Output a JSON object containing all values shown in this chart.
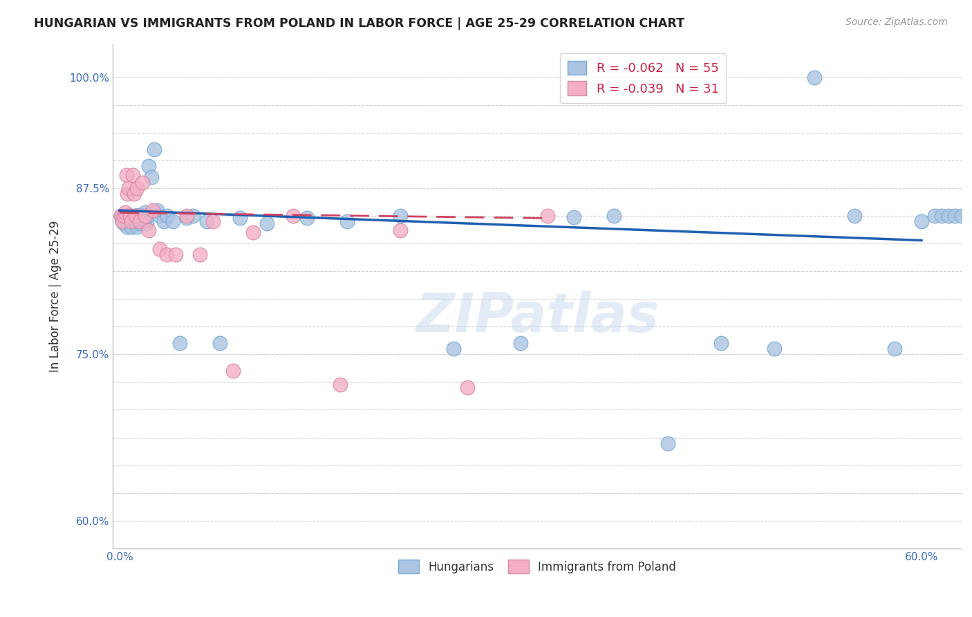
{
  "title": "HUNGARIAN VS IMMIGRANTS FROM POLAND IN LABOR FORCE | AGE 25-29 CORRELATION CHART",
  "source": "Source: ZipAtlas.com",
  "ylabel": "In Labor Force | Age 25-29",
  "xlim": [
    -0.005,
    0.63
  ],
  "ylim": [
    0.575,
    1.03
  ],
  "yticks": [
    0.6,
    0.625,
    0.65,
    0.675,
    0.7,
    0.725,
    0.75,
    0.775,
    0.8,
    0.825,
    0.85,
    0.875,
    0.9,
    0.925,
    0.95,
    0.975,
    1.0
  ],
  "ytick_labels": [
    "60.0%",
    "",
    "",
    "",
    "",
    "",
    "75.0%",
    "",
    "",
    "",
    "",
    "",
    "87.5%",
    "",
    "",
    "",
    "100.0%"
  ],
  "xticks": [
    0.0,
    0.1,
    0.2,
    0.3,
    0.4,
    0.5,
    0.6
  ],
  "xtick_labels": [
    "0.0%",
    "",
    "",
    "",
    "",
    "",
    "60.0%"
  ],
  "blue_color": "#aac4e2",
  "pink_color": "#f4afc4",
  "blue_line_color": "#2060b0",
  "pink_line_color": "#d04060",
  "legend_R1": "-0.062",
  "legend_N1": "55",
  "legend_R2": "-0.039",
  "legend_N2": "31",
  "watermark": "ZIPatlas",
  "blue_points_x": [
    0.001,
    0.002,
    0.003,
    0.004,
    0.005,
    0.006,
    0.007,
    0.008,
    0.009,
    0.01,
    0.011,
    0.012,
    0.013,
    0.014,
    0.015,
    0.016,
    0.017,
    0.018,
    0.019,
    0.02,
    0.021,
    0.022,
    0.024,
    0.026,
    0.028,
    0.03,
    0.033,
    0.036,
    0.04,
    0.045,
    0.05,
    0.055,
    0.065,
    0.075,
    0.09,
    0.11,
    0.14,
    0.17,
    0.21,
    0.25,
    0.3,
    0.34,
    0.37,
    0.41,
    0.45,
    0.49,
    0.52,
    0.55,
    0.58,
    0.6,
    0.61,
    0.615,
    0.62,
    0.625,
    0.63
  ],
  "blue_points_y": [
    0.875,
    0.87,
    0.868,
    0.875,
    0.87,
    0.865,
    0.876,
    0.87,
    0.865,
    0.872,
    0.875,
    0.87,
    0.865,
    0.876,
    0.868,
    0.872,
    0.875,
    0.87,
    0.878,
    0.868,
    0.875,
    0.92,
    0.91,
    0.935,
    0.88,
    0.875,
    0.87,
    0.875,
    0.87,
    0.76,
    0.873,
    0.875,
    0.87,
    0.76,
    0.873,
    0.868,
    0.873,
    0.87,
    0.875,
    0.755,
    0.76,
    0.874,
    0.875,
    0.67,
    0.76,
    0.755,
    1.0,
    0.875,
    0.755,
    0.87,
    0.875,
    0.875,
    0.875,
    0.875,
    0.875
  ],
  "pink_points_x": [
    0.001,
    0.002,
    0.003,
    0.004,
    0.005,
    0.006,
    0.007,
    0.008,
    0.009,
    0.01,
    0.011,
    0.012,
    0.013,
    0.015,
    0.017,
    0.019,
    0.022,
    0.025,
    0.03,
    0.035,
    0.042,
    0.05,
    0.06,
    0.07,
    0.085,
    0.1,
    0.13,
    0.165,
    0.21,
    0.26,
    0.32
  ],
  "pink_points_y": [
    0.875,
    0.87,
    0.875,
    0.878,
    0.912,
    0.895,
    0.9,
    0.875,
    0.87,
    0.912,
    0.895,
    0.875,
    0.9,
    0.87,
    0.905,
    0.875,
    0.862,
    0.88,
    0.845,
    0.84,
    0.84,
    0.875,
    0.84,
    0.87,
    0.735,
    0.86,
    0.875,
    0.723,
    0.862,
    0.72,
    0.875
  ],
  "blue_line_x0": 0.0,
  "blue_line_y0": 0.88,
  "blue_line_x1": 0.6,
  "blue_line_y1": 0.853,
  "pink_line_x0": 0.0,
  "pink_line_y0": 0.878,
  "pink_line_x1": 0.32,
  "pink_line_y1": 0.873
}
